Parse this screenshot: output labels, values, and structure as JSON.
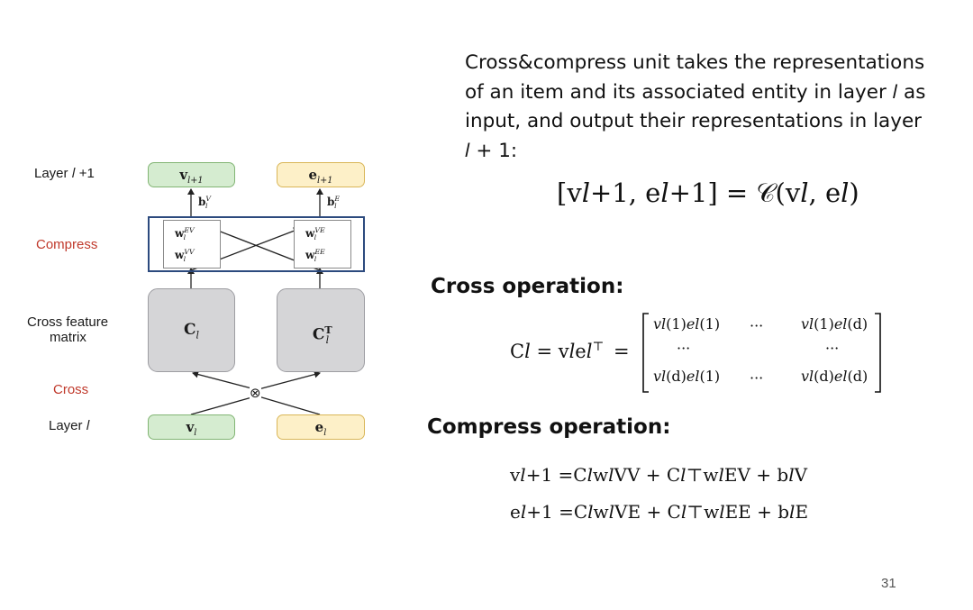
{
  "diagram": {
    "row_labels": {
      "layer_next": "Layer 𝑙 +1",
      "compress": "Compress",
      "cross_feature_matrix_line1": "Cross feature",
      "cross_feature_matrix_line2": "matrix",
      "cross": "Cross",
      "layer": "Layer 𝑙"
    },
    "boxes": {
      "v_next": "v",
      "v_next_sub": "l+1",
      "e_next": "e",
      "e_next_sub": "l+1",
      "b_v": "b",
      "b_v_sup": "V",
      "b_v_sub": "l",
      "b_e": "b",
      "b_e_sup": "E",
      "b_e_sub": "l",
      "w_ev": "w",
      "w_ev_sup": "EV",
      "w_vv": "w",
      "w_vv_sup": "VV",
      "w_ve": "w",
      "w_ve_sup": "VE",
      "w_ee": "w",
      "w_ee_sup": "EE",
      "w_sub": "l",
      "c_left": "C",
      "c_left_sub": "l",
      "c_right": "C",
      "c_right_sup": "T",
      "c_right_sub": "l",
      "cross_symbol": "⊗",
      "v_l": "v",
      "v_l_sub": "l",
      "e_l": "e",
      "e_l_sub": "l"
    },
    "colors": {
      "green_fill": "#d5ecd0",
      "yellow_fill": "#fdf0c8",
      "gray_fill": "#d5d5d7",
      "compress_border": "#2c4a7e",
      "red_label": "#c0392b"
    }
  },
  "description": {
    "line1": "Cross&compress unit takes the representations",
    "line2": "of an item and its associated entity in layer 𝑙 as",
    "line3": "input, and output their representations in layer",
    "line4": "𝑙 + 1:"
  },
  "equations": {
    "main": "[v𝑙+1, e𝑙+1] = 𝒞(v𝑙, e𝑙)",
    "cross_heading": "Cross operation:",
    "cross_lhs": "C𝑙 = v𝑙e𝑙",
    "cross_lhs_sup": "⊤",
    "cross_eq": "=",
    "matrix_r1c1": "𝑣𝑙(1)𝑒𝑙(1)",
    "matrix_r1c2": "···",
    "matrix_r1c3": "𝑣𝑙(1)𝑒𝑙(d)",
    "matrix_r2c1": "···",
    "matrix_r2c3": "···",
    "matrix_r3c1": "𝑣𝑙(d)𝑒𝑙(1)",
    "matrix_r3c2": "···",
    "matrix_r3c3": "𝑣𝑙(d)𝑒𝑙(d)",
    "compress_heading": "Compress operation:",
    "compress_v": "v𝑙+1 =C𝑙w𝑙VV + C𝑙⊤w𝑙EV + b𝑙V",
    "compress_e": "e𝑙+1 =C𝑙w𝑙VE + C𝑙⊤w𝑙EE + b𝑙E"
  },
  "footer": {
    "page_number": "31"
  }
}
